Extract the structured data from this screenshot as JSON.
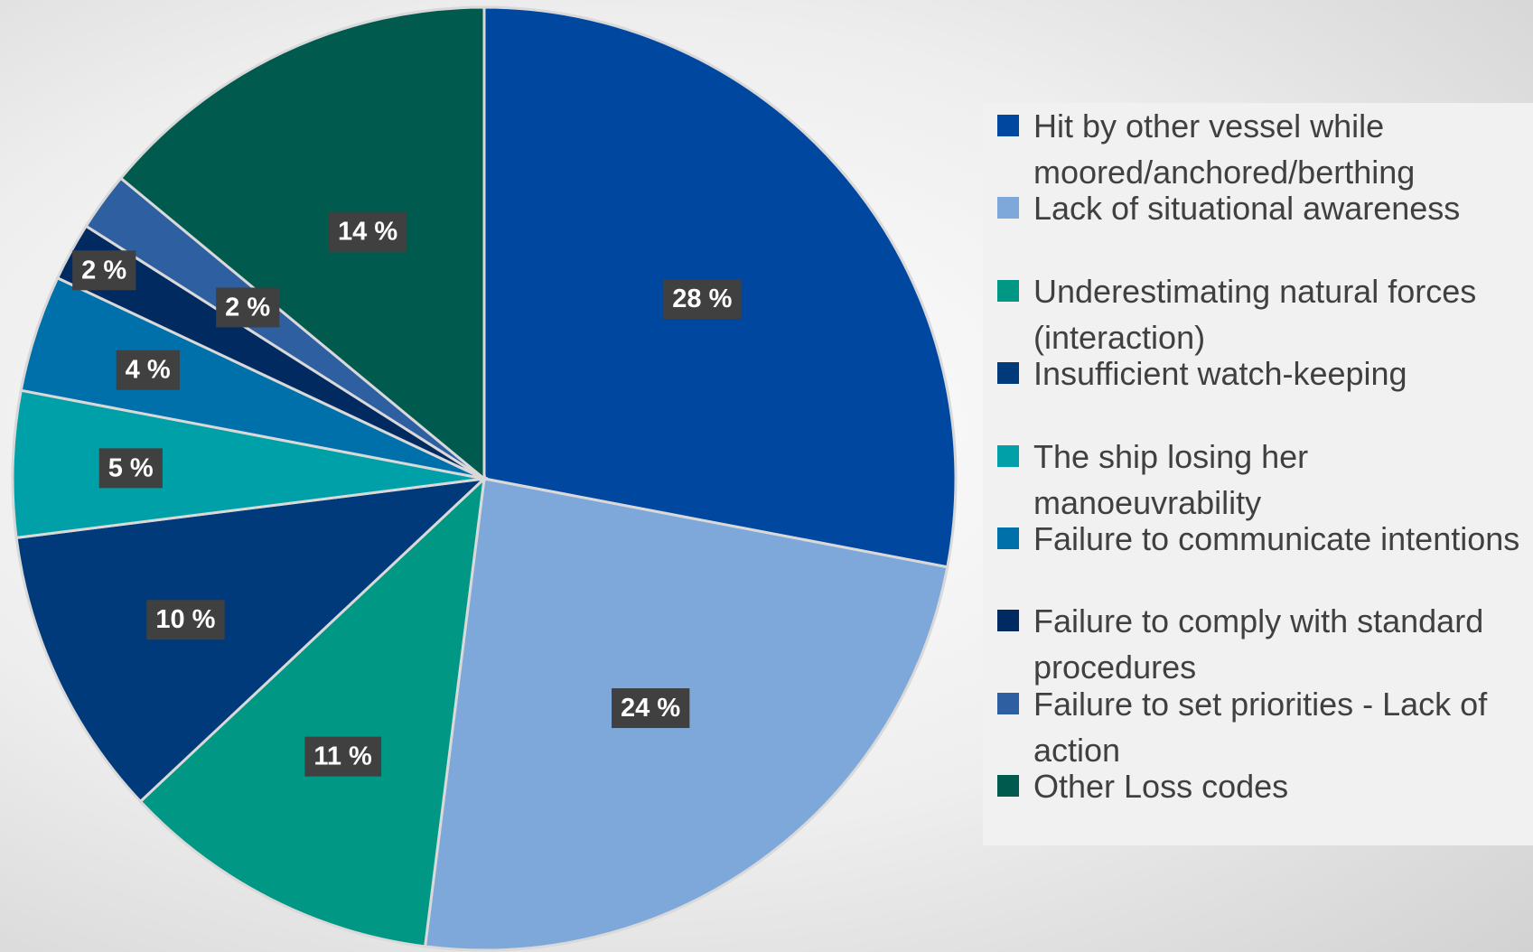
{
  "chart_data": {
    "type": "pie",
    "categories": [
      "Hit by other vessel while moored/anchored/berthing",
      "Lack of situational awareness",
      "Underestimating natural forces (interaction)",
      "Insufficient watch-keeping",
      "The ship losing her manoeuvrability",
      "Failure to communicate intentions",
      "Failure to comply with standard procedures",
      "Failure to set priorities - Lack of action",
      "Other Loss codes"
    ],
    "values": [
      28,
      24,
      11,
      10,
      5,
      4,
      2,
      2,
      14
    ],
    "value_labels": [
      "28 %",
      "24 %",
      "11 %",
      "10 %",
      "5 %",
      "4 %",
      "2 %",
      "2 %",
      "14 %"
    ],
    "colors": [
      "#0047a0",
      "#7fa8da",
      "#009784",
      "#003a7a",
      "#00a0a8",
      "#0070aa",
      "#002a60",
      "#2e5fa0",
      "#005a4e"
    ],
    "legend": "right"
  }
}
